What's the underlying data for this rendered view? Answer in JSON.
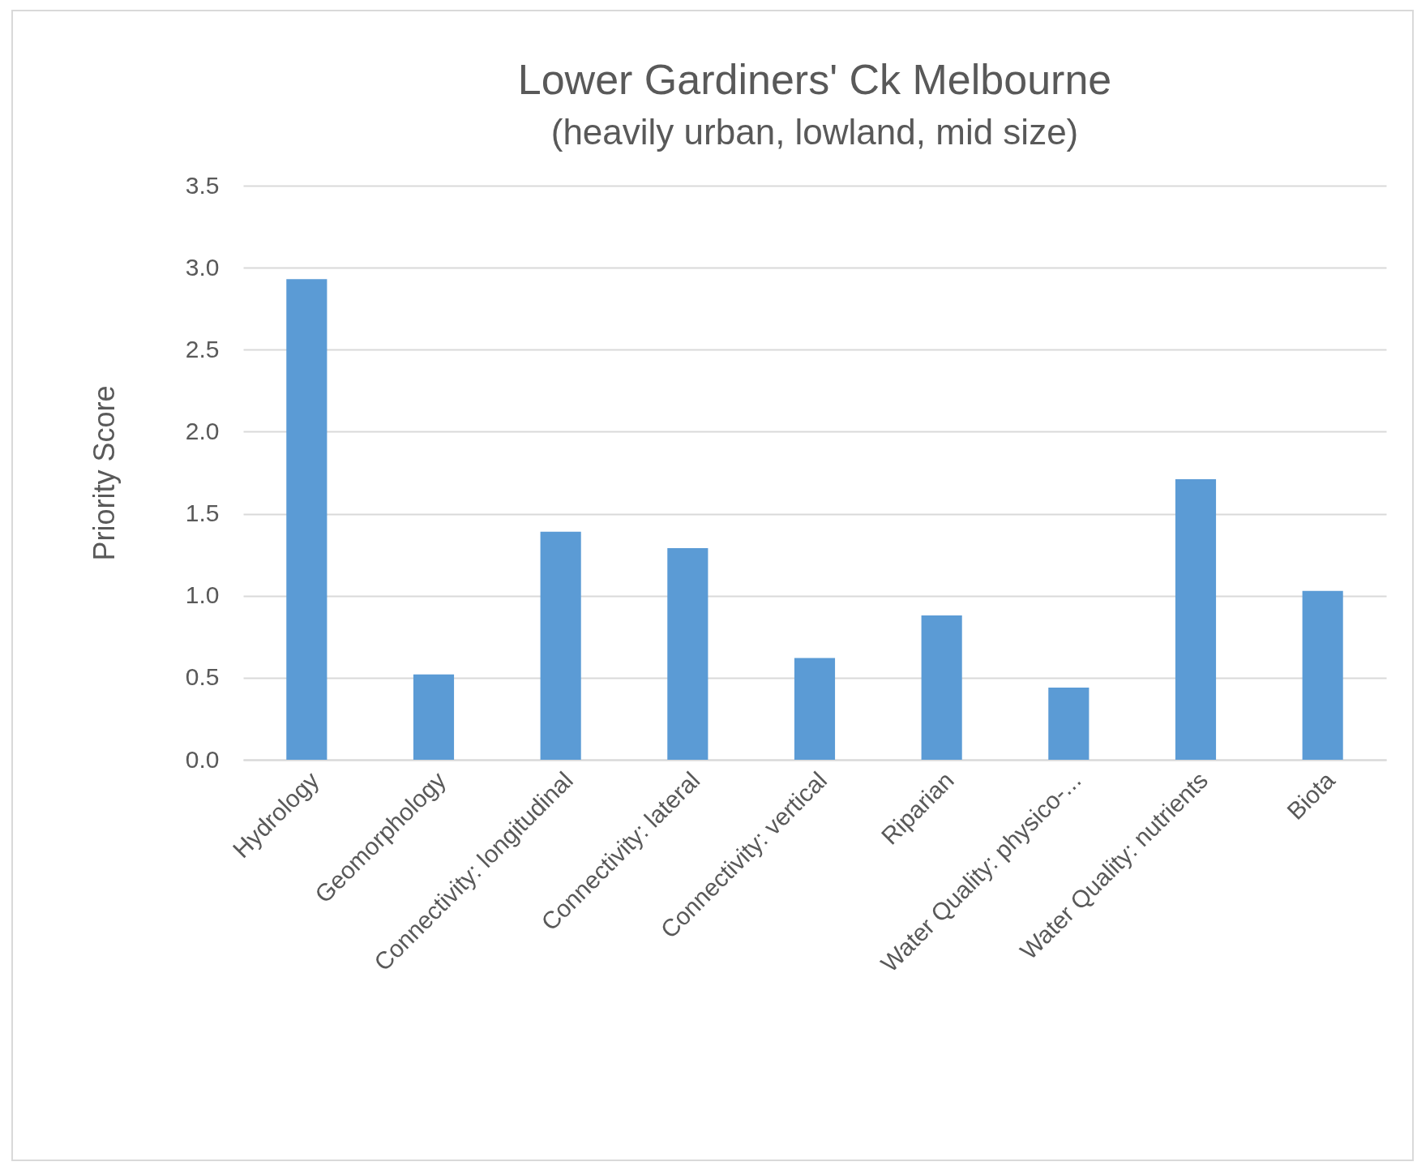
{
  "chart_data": {
    "type": "bar",
    "title": "Lower Gardiners' Ck Melbourne",
    "subtitle": "(heavily urban, lowland, mid size)",
    "ylabel": "Priority Score",
    "categories": [
      "Hydrology",
      "Geomorphology",
      "Connectivity: longitudinal",
      "Connectivity: lateral",
      "Connectivity: vertical",
      "Riparian",
      "Water Quality: physico-...",
      "Water Quality: nutrients",
      "Biota"
    ],
    "values": [
      2.93,
      0.52,
      1.39,
      1.29,
      0.62,
      0.88,
      0.44,
      1.71,
      1.03
    ],
    "color": "#5b9bd5",
    "ylim": [
      0,
      3.5
    ],
    "yticks": [
      {
        "value": 0,
        "label": "0.0"
      },
      {
        "value": 0.5,
        "label": "0.5"
      },
      {
        "value": 1,
        "label": "1.0"
      },
      {
        "value": 1.5,
        "label": "1.5"
      },
      {
        "value": 2,
        "label": "2.0"
      },
      {
        "value": 2.5,
        "label": "2.5"
      },
      {
        "value": 3,
        "label": "3.0"
      },
      {
        "value": 3.5,
        "label": "3.5"
      }
    ],
    "grid": true
  }
}
